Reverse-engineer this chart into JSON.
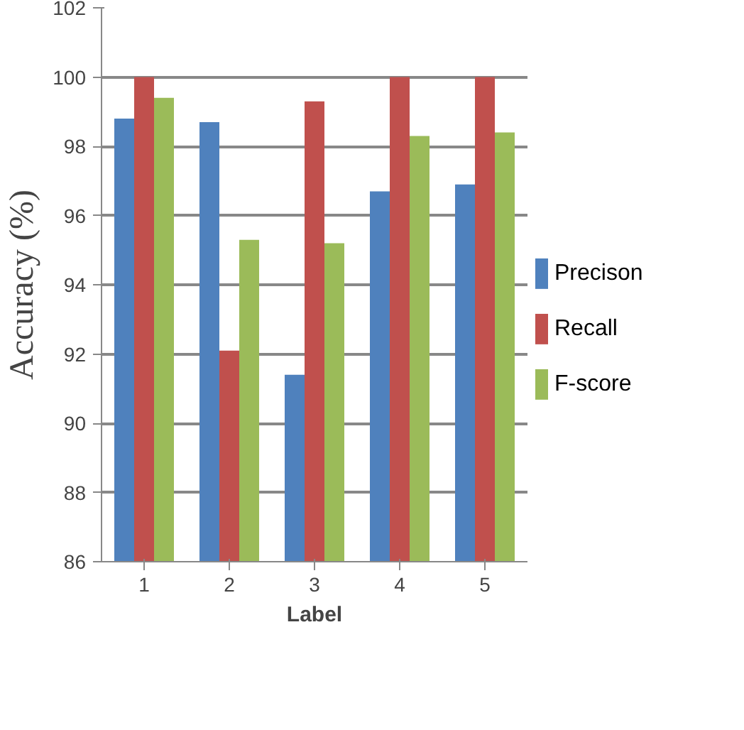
{
  "chart_data": {
    "type": "bar",
    "xlabel": "Label",
    "ylabel": "Accuracy (%)",
    "categories": [
      "1",
      "2",
      "3",
      "4",
      "5"
    ],
    "series": [
      {
        "name": "Precison",
        "color": "#4f81bd",
        "values": [
          98.8,
          98.7,
          91.4,
          96.7,
          96.9
        ]
      },
      {
        "name": "Recall",
        "color": "#c0504d",
        "values": [
          100,
          92.1,
          99.3,
          100,
          100
        ]
      },
      {
        "name": "F-score",
        "color": "#9bbb59",
        "values": [
          99.4,
          95.3,
          95.2,
          98.3,
          98.4
        ]
      }
    ],
    "ylim": [
      86,
      102
    ],
    "yticks": [
      86,
      88,
      90,
      92,
      94,
      96,
      98,
      100,
      102
    ],
    "grid": "y",
    "legend": "right"
  }
}
